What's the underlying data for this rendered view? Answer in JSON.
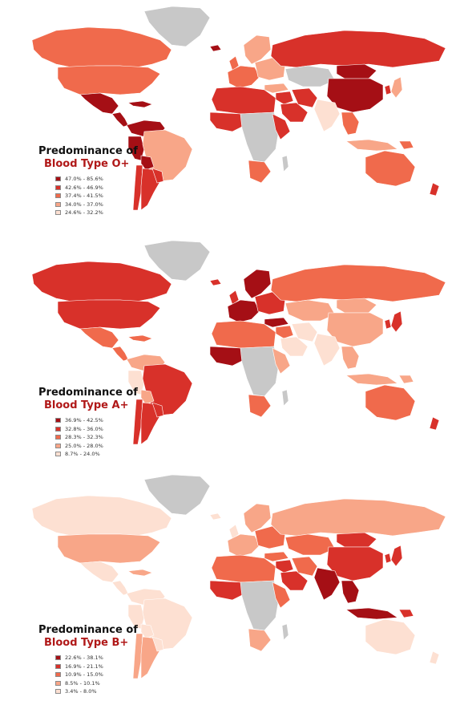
{
  "maps": [
    {
      "title_line1": "Predominance of",
      "title_line2": "Blood Type O+",
      "classes": [
        {
          "label": "47.0% - 85.6%",
          "color": "#a50f15"
        },
        {
          "label": "42.6% - 46.9%",
          "color": "#d8312a"
        },
        {
          "label": "37.4% - 41.5%",
          "color": "#f06a4c"
        },
        {
          "label": "34.0% - 37.0%",
          "color": "#f8a688"
        },
        {
          "label": "24.6% - 32.2%",
          "color": "#fde0d2"
        }
      ],
      "regions": {
        "canada": 3,
        "greenland": -1,
        "usa": 3,
        "mexico": 1,
        "central_am": 1,
        "caribbean": 1,
        "colombia_ven": 1,
        "peru": 1,
        "brazil": 4,
        "bolivia": 1,
        "chile": 2,
        "argentina": 2,
        "paraguay_uy": 2,
        "iceland": 1,
        "uk": 3,
        "scandinavia": 4,
        "w_europe": 3,
        "e_europe": 4,
        "russia": 2,
        "kazakh_central": -1,
        "mongolia": 1,
        "china": 1,
        "turkey": 4,
        "middle_east": 2,
        "saudi": 2,
        "iran": 2,
        "india": 5,
        "se_asia": 3,
        "indonesia": 4,
        "japan": 4,
        "korea": 2,
        "n_africa": 2,
        "w_africa": 2,
        "c_africa": -1,
        "e_africa": 2,
        "s_africa": 3,
        "madagascar": -1,
        "australia": 3,
        "new_zealand": 2,
        "png": 3
      }
    },
    {
      "title_line1": "Predominance of",
      "title_line2": "Blood Type A+",
      "classes": [
        {
          "label": "36.9% - 42.5%",
          "color": "#a50f15"
        },
        {
          "label": "32.8% - 36.0%",
          "color": "#d8312a"
        },
        {
          "label": "28.3% - 32.3%",
          "color": "#f06a4c"
        },
        {
          "label": "25.0% - 28.0%",
          "color": "#f8a688"
        },
        {
          "label": "8.7% - 24.0%",
          "color": "#fde0d2"
        }
      ],
      "regions": {
        "canada": 2,
        "greenland": -1,
        "usa": 2,
        "mexico": 3,
        "central_am": 3,
        "caribbean": 3,
        "colombia_ven": 4,
        "peru": 5,
        "brazil": 2,
        "bolivia": 4,
        "chile": 2,
        "argentina": 2,
        "paraguay_uy": 2,
        "iceland": 2,
        "uk": 2,
        "scandinavia": 1,
        "w_europe": 1,
        "e_europe": 2,
        "russia": 3,
        "kazakh_central": 4,
        "mongolia": 4,
        "china": 4,
        "turkey": 1,
        "middle_east": 3,
        "saudi": 5,
        "iran": 5,
        "india": 5,
        "se_asia": 4,
        "indonesia": 4,
        "japan": 2,
        "korea": 2,
        "n_africa": 3,
        "w_africa": 1,
        "c_africa": -1,
        "e_africa": 4,
        "s_africa": 3,
        "madagascar": -1,
        "australia": 3,
        "new_zealand": 2,
        "png": 4
      }
    },
    {
      "title_line1": "Predominance of",
      "title_line2": "Blood Type B+",
      "classes": [
        {
          "label": "22.6% - 38.1%",
          "color": "#a50f15"
        },
        {
          "label": "16.9% - 21.1%",
          "color": "#d8312a"
        },
        {
          "label": "10.9% - 15.0%",
          "color": "#f06a4c"
        },
        {
          "label": "8.5% - 10.1%",
          "color": "#f8a688"
        },
        {
          "label": "3.4% - 8.0%",
          "color": "#fde0d2"
        }
      ],
      "regions": {
        "canada": 5,
        "greenland": -1,
        "usa": 4,
        "mexico": 5,
        "central_am": 5,
        "caribbean": 4,
        "colombia_ven": 5,
        "peru": 5,
        "brazil": 5,
        "bolivia": 5,
        "chile": 4,
        "argentina": 4,
        "paraguay_uy": 5,
        "iceland": 5,
        "uk": 5,
        "scandinavia": 4,
        "w_europe": 4,
        "e_europe": 3,
        "russia": 4,
        "kazakh_central": 3,
        "mongolia": 2,
        "china": 2,
        "turkey": 3,
        "middle_east": 2,
        "saudi": 2,
        "iran": 3,
        "india": 1,
        "se_asia": 1,
        "indonesia": 1,
        "japan": 2,
        "korea": 2,
        "n_africa": 3,
        "w_africa": 2,
        "c_africa": -1,
        "e_africa": 3,
        "s_africa": 4,
        "madagascar": -1,
        "australia": 5,
        "new_zealand": 5,
        "png": 2
      }
    }
  ]
}
